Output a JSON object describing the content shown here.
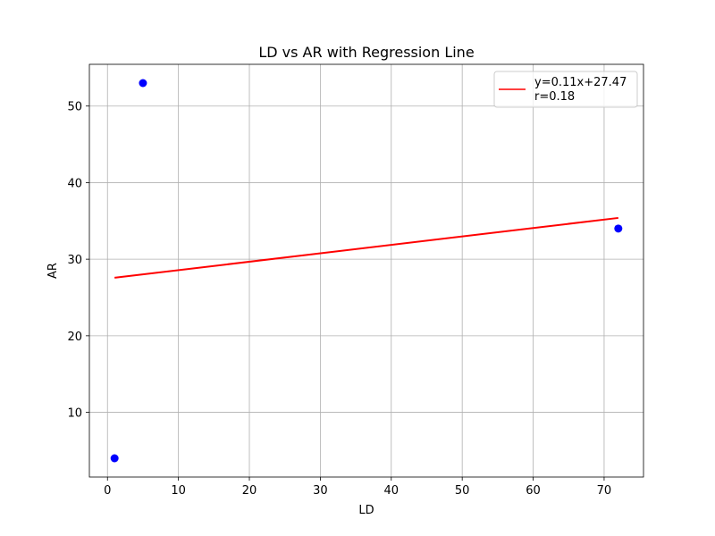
{
  "chart_data": {
    "type": "scatter",
    "title": "LD vs AR with Regression Line",
    "xlabel": "LD",
    "ylabel": "AR",
    "xlim": [
      -2.55,
      75.55
    ],
    "ylim": [
      1.55,
      55.45
    ],
    "xticks": [
      0,
      10,
      20,
      30,
      40,
      50,
      60,
      70
    ],
    "yticks": [
      10,
      20,
      30,
      40,
      50
    ],
    "grid": true,
    "legend_position": "top-right",
    "series": [
      {
        "kind": "scatter",
        "color": "#0000ff",
        "points": [
          {
            "x": 1,
            "y": 4
          },
          {
            "x": 5,
            "y": 53
          },
          {
            "x": 72,
            "y": 34
          }
        ]
      },
      {
        "kind": "line",
        "name": "y=0.11x+27.47\nr=0.18",
        "color": "#ff0000",
        "slope": 0.11,
        "intercept": 27.47,
        "x_range": [
          1,
          72
        ]
      }
    ],
    "legend": {
      "line1": "y=0.11x+27.47",
      "line2": "r=0.18"
    }
  }
}
